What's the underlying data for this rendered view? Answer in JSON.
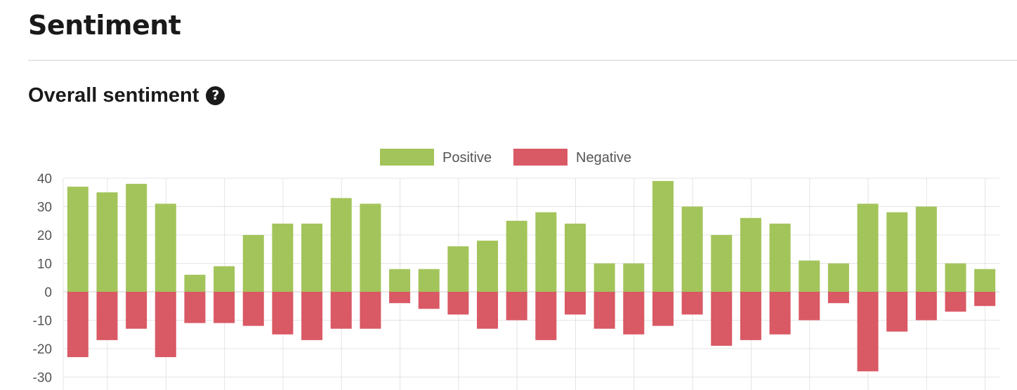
{
  "page": {
    "title": "Sentiment",
    "subtitle": "Overall sentiment",
    "help_icon": "question-circle-icon",
    "help_symbol": "?"
  },
  "colors": {
    "positive": "#a3c45a",
    "negative": "#d95965",
    "grid": "#e4e4e4",
    "zero_line": "#d0d0d0"
  },
  "chart_data": {
    "type": "bar",
    "stacked": true,
    "title": "",
    "xlabel": "",
    "ylabel": "",
    "ylim": [
      -30,
      40
    ],
    "yticks": [
      40,
      30,
      20,
      10,
      0,
      -10,
      -20,
      -30
    ],
    "grid": true,
    "legend_position": "top-center",
    "series": [
      {
        "name": "Positive",
        "color": "#a3c45a",
        "values": [
          37,
          35,
          38,
          31,
          6,
          9,
          20,
          24,
          24,
          33,
          31,
          8,
          8,
          16,
          18,
          25,
          28,
          24,
          10,
          10,
          39,
          30,
          20,
          26,
          24,
          11,
          10,
          31,
          28,
          30,
          10,
          8
        ]
      },
      {
        "name": "Negative",
        "color": "#d95965",
        "values": [
          -23,
          -17,
          -13,
          -23,
          -11,
          -11,
          -12,
          -15,
          -17,
          -13,
          -13,
          -4,
          -6,
          -8,
          -13,
          -10,
          -17,
          -8,
          -13,
          -15,
          -12,
          -8,
          -19,
          -17,
          -15,
          -10,
          -4,
          -28,
          -14,
          -10,
          -7,
          -5
        ]
      }
    ]
  }
}
